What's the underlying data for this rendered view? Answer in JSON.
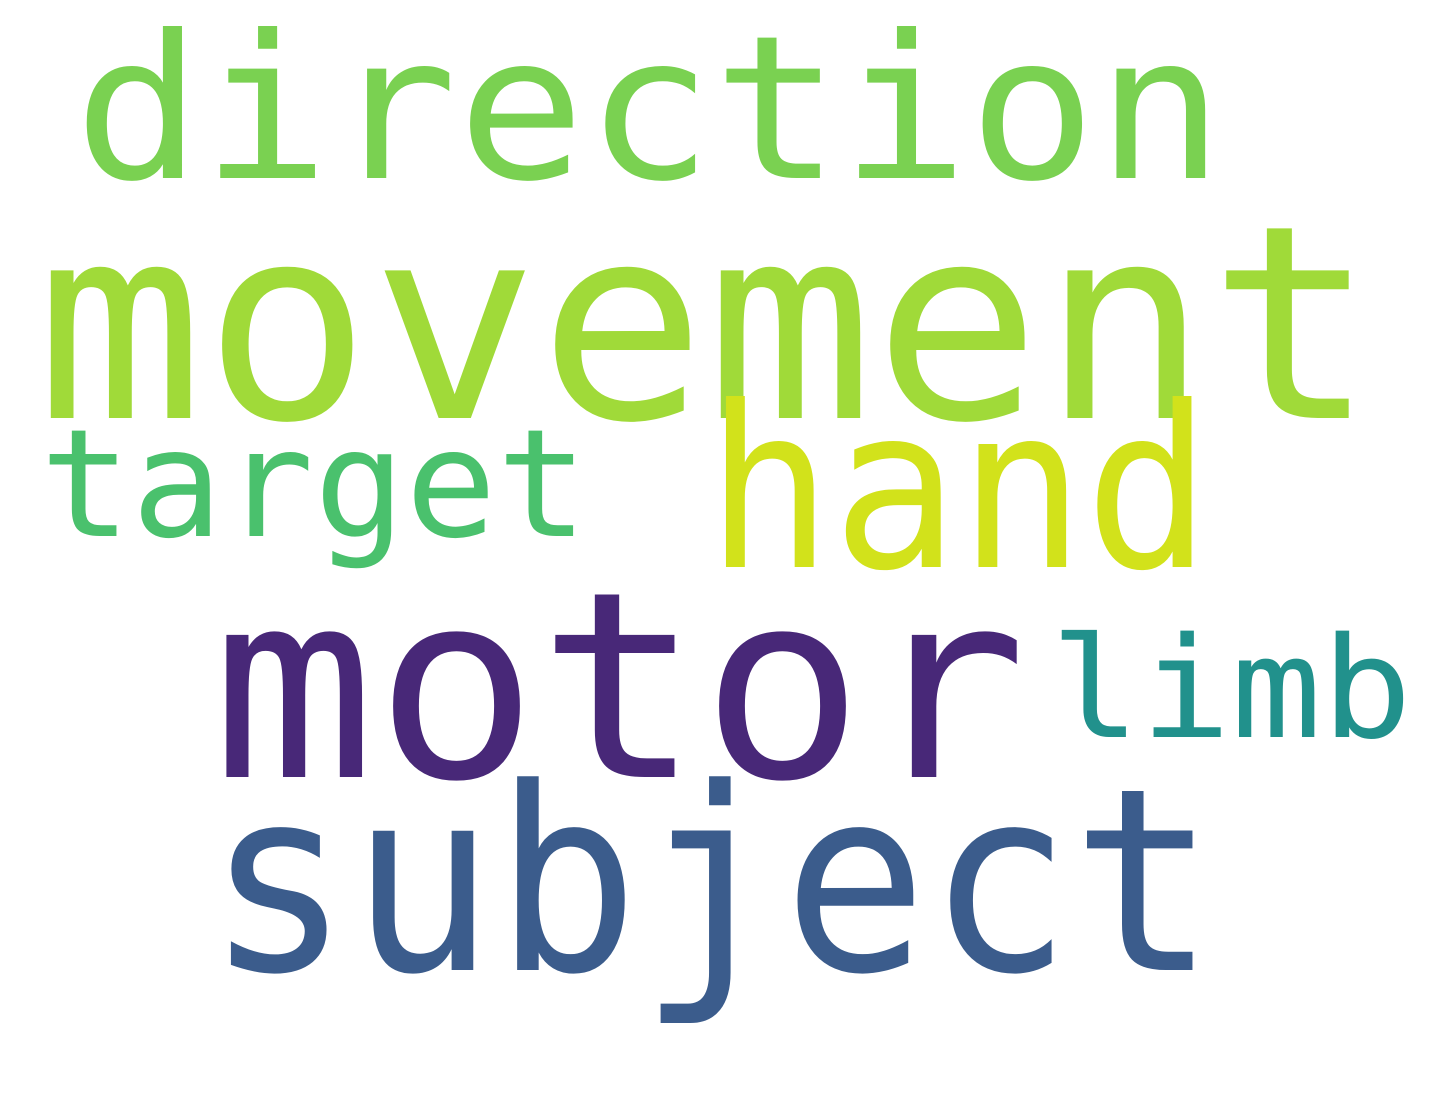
{
  "words": [
    {
      "id": "direction",
      "text": "direction",
      "color": "#7ad151"
    },
    {
      "id": "movement",
      "text": "movement",
      "color": "#a0da39"
    },
    {
      "id": "target",
      "text": "target",
      "color": "#4ac16d"
    },
    {
      "id": "hand",
      "text": "hand",
      "color": "#d2e21b"
    },
    {
      "id": "motor",
      "text": "motor",
      "color": "#482878"
    },
    {
      "id": "limb",
      "text": "limb",
      "color": "#21918c"
    },
    {
      "id": "subject",
      "text": "subject",
      "color": "#3b5c8c"
    }
  ]
}
